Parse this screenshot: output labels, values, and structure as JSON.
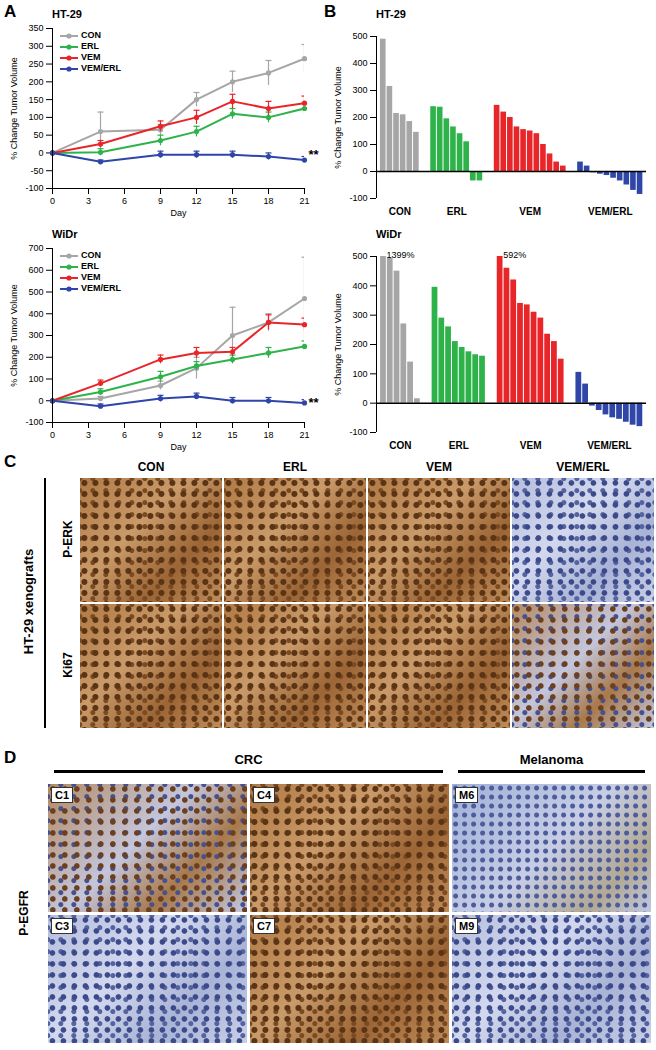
{
  "chart_data": [
    {
      "type": "line",
      "title": "HT-29",
      "x_label": "Day",
      "y_label": "% Change Tumor Volume",
      "x": [
        0,
        4,
        9,
        12,
        15,
        18,
        21
      ],
      "xlim": [
        0,
        21
      ],
      "xticks": [
        0,
        3,
        6,
        9,
        12,
        15,
        18,
        21
      ],
      "ylim": [
        -100,
        350
      ],
      "yticks": [
        -100,
        -50,
        0,
        50,
        100,
        150,
        200,
        250,
        300,
        350
      ],
      "marker": "circle",
      "legend": "top-left",
      "series": [
        {
          "name": "CON",
          "color": "#a6a6a6",
          "values": [
            0,
            60,
            65,
            150,
            200,
            225,
            265
          ],
          "errors": [
            0,
            55,
            15,
            20,
            30,
            35,
            40
          ]
        },
        {
          "name": "ERL",
          "color": "#2eb34a",
          "values": [
            0,
            2,
            35,
            60,
            110,
            100,
            125
          ],
          "errors": [
            0,
            10,
            15,
            15,
            15,
            15,
            15
          ]
        },
        {
          "name": "VEM",
          "color": "#e8262a",
          "values": [
            0,
            25,
            75,
            100,
            145,
            125,
            140
          ],
          "errors": [
            0,
            10,
            15,
            20,
            20,
            20,
            20
          ]
        },
        {
          "name": "VEM/ERL",
          "color": "#2f46a8",
          "values": [
            0,
            -25,
            -5,
            -5,
            -5,
            -10,
            -20
          ],
          "errors": [
            0,
            5,
            10,
            10,
            10,
            10,
            10
          ]
        }
      ],
      "annotations": [
        {
          "text": "**",
          "x": 21,
          "y": -5
        }
      ]
    },
    {
      "type": "line",
      "title": "WiDr",
      "x_label": "Day",
      "y_label": "% Change Tumor Volume",
      "x": [
        0,
        4,
        9,
        12,
        15,
        18,
        21
      ],
      "xlim": [
        0,
        21
      ],
      "xticks": [
        0,
        3,
        6,
        9,
        12,
        15,
        18,
        21
      ],
      "ylim": [
        -100,
        700
      ],
      "yticks": [
        -100,
        0,
        100,
        200,
        300,
        400,
        500,
        600,
        700
      ],
      "marker": "circle",
      "legend": "top-left",
      "series": [
        {
          "name": "CON",
          "color": "#a6a6a6",
          "values": [
            0,
            10,
            70,
            150,
            300,
            360,
            470
          ],
          "errors": [
            0,
            10,
            20,
            50,
            130,
            40,
            190
          ]
        },
        {
          "name": "ERL",
          "color": "#2eb34a",
          "values": [
            0,
            40,
            110,
            160,
            190,
            220,
            250
          ],
          "errors": [
            0,
            15,
            25,
            20,
            20,
            25,
            25
          ]
        },
        {
          "name": "VEM",
          "color": "#e8262a",
          "values": [
            0,
            80,
            190,
            220,
            225,
            360,
            350
          ],
          "errors": [
            0,
            15,
            20,
            25,
            20,
            35,
            30
          ]
        },
        {
          "name": "VEM/ERL",
          "color": "#2f46a8",
          "values": [
            0,
            -25,
            10,
            20,
            0,
            0,
            -10
          ],
          "errors": [
            0,
            10,
            15,
            15,
            15,
            15,
            15
          ]
        }
      ],
      "annotations": [
        {
          "text": "**",
          "x": 21,
          "y": -10
        }
      ]
    },
    {
      "type": "bar",
      "title": "HT-29",
      "y_label": "% Change Tumor Volume",
      "ylim": [
        -100,
        500
      ],
      "yticks": [
        -100,
        0,
        100,
        200,
        300,
        400,
        500
      ],
      "groups": [
        {
          "label": "CON",
          "color": "#a6a6a6",
          "values": [
            490,
            315,
            215,
            210,
            185,
            145
          ]
        },
        {
          "label": "ERL",
          "color": "#2eb34a",
          "values": [
            240,
            238,
            195,
            165,
            140,
            110,
            -35,
            -35
          ]
        },
        {
          "label": "VEM",
          "color": "#e8262a",
          "values": [
            245,
            220,
            200,
            165,
            155,
            150,
            140,
            100,
            65,
            35,
            20
          ]
        },
        {
          "label": "VEM/ERL",
          "color": "#2f46a8",
          "values": [
            35,
            20,
            -5,
            -10,
            -15,
            -25,
            -35,
            -50,
            -70,
            -85
          ]
        }
      ]
    },
    {
      "type": "bar",
      "title": "WiDr",
      "y_label": "% Change Tumor Volume",
      "ylim": [
        -100,
        500
      ],
      "yticks": [
        -100,
        0,
        100,
        200,
        300,
        400,
        500
      ],
      "groups": [
        {
          "label": "CON",
          "color": "#a6a6a6",
          "values": [
            1399,
            495,
            450,
            270,
            140,
            15
          ],
          "value_labels": [
            "1399%",
            null,
            null,
            null,
            null,
            null
          ]
        },
        {
          "label": "ERL",
          "color": "#2eb34a",
          "values": [
            395,
            290,
            260,
            210,
            190,
            175,
            165,
            160
          ]
        },
        {
          "label": "VEM",
          "color": "#e8262a",
          "values": [
            592,
            460,
            420,
            340,
            335,
            310,
            290,
            235,
            210,
            150
          ],
          "value_labels": [
            "592%",
            null,
            null,
            null,
            null,
            null,
            null,
            null,
            null,
            null
          ]
        },
        {
          "label": "VEM/ERL",
          "color": "#2f46a8",
          "values": [
            105,
            65,
            -10,
            -25,
            -40,
            -50,
            -55,
            -65,
            -75,
            -80
          ]
        }
      ]
    }
  ],
  "panel_labels": [
    "A",
    "B",
    "C",
    "D"
  ],
  "image_panels": [
    {
      "row_group_label": "HT-29 xenografts",
      "columns": [
        "CON",
        "ERL",
        "VEM",
        "VEM/ERL"
      ],
      "rows": [
        "P-ERK",
        "Ki67"
      ]
    },
    {
      "row_label": "P-EGFR",
      "column_groups": [
        {
          "label": "CRC",
          "columns": [
            [
              "C1",
              "C3"
            ],
            [
              "C4",
              "C7"
            ]
          ]
        },
        {
          "label": "Melanoma",
          "columns": [
            [
              "M6",
              "M9"
            ]
          ]
        }
      ]
    }
  ]
}
